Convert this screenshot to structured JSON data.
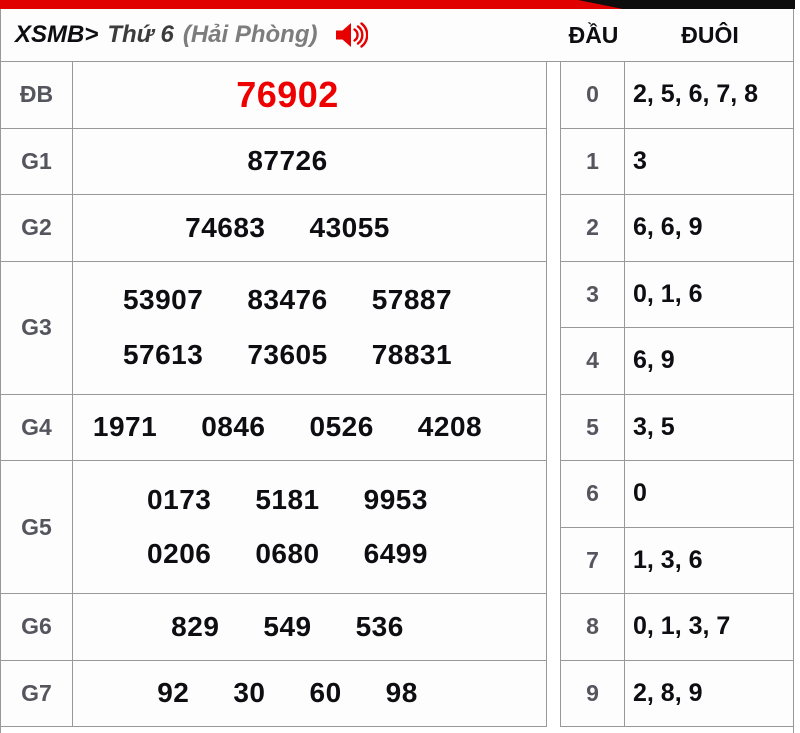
{
  "header": {
    "title_prefix": "XSMB>",
    "title_day": "Thứ 6",
    "title_region": "(Hải Phòng)",
    "speaker_icon": "speaker-loud-icon",
    "dau_label": "ĐẦU",
    "duoi_label": "ĐUÔI"
  },
  "results": {
    "rows": [
      {
        "label": "ĐB",
        "highlight": true,
        "lines": [
          [
            "76902"
          ]
        ]
      },
      {
        "label": "G1",
        "highlight": false,
        "lines": [
          [
            "87726"
          ]
        ]
      },
      {
        "label": "G2",
        "highlight": false,
        "lines": [
          [
            "74683",
            "43055"
          ]
        ]
      },
      {
        "label": "G3",
        "highlight": false,
        "lines": [
          [
            "53907",
            "83476",
            "57887"
          ],
          [
            "57613",
            "73605",
            "78831"
          ]
        ]
      },
      {
        "label": "G4",
        "highlight": false,
        "lines": [
          [
            "1971",
            "0846",
            "0526",
            "4208"
          ]
        ]
      },
      {
        "label": "G5",
        "highlight": false,
        "lines": [
          [
            "0173",
            "5181",
            "9953"
          ],
          [
            "0206",
            "0680",
            "6499"
          ]
        ]
      },
      {
        "label": "G6",
        "highlight": false,
        "lines": [
          [
            "829",
            "549",
            "536"
          ]
        ]
      },
      {
        "label": "G7",
        "highlight": false,
        "lines": [
          [
            "92",
            "30",
            "60",
            "98"
          ]
        ]
      }
    ]
  },
  "dau_duoi": {
    "rows": [
      {
        "dau": "0",
        "duoi": "2, 5, 6, 7, 8"
      },
      {
        "dau": "1",
        "duoi": "3"
      },
      {
        "dau": "2",
        "duoi": "6, 6, 9"
      },
      {
        "dau": "3",
        "duoi": "0, 1, 6"
      },
      {
        "dau": "4",
        "duoi": "6, 9"
      },
      {
        "dau": "5",
        "duoi": "3, 5"
      },
      {
        "dau": "6",
        "duoi": "0"
      },
      {
        "dau": "7",
        "duoi": "1, 3, 6"
      },
      {
        "dau": "8",
        "duoi": "0, 1, 3, 7"
      },
      {
        "dau": "9",
        "duoi": "2, 8, 9"
      }
    ]
  },
  "colors": {
    "accent_red": "#e10000",
    "special_number": "#ee0000",
    "label_gray": "#55555e",
    "number_black": "#0d0d12",
    "border_gray": "#999999"
  }
}
